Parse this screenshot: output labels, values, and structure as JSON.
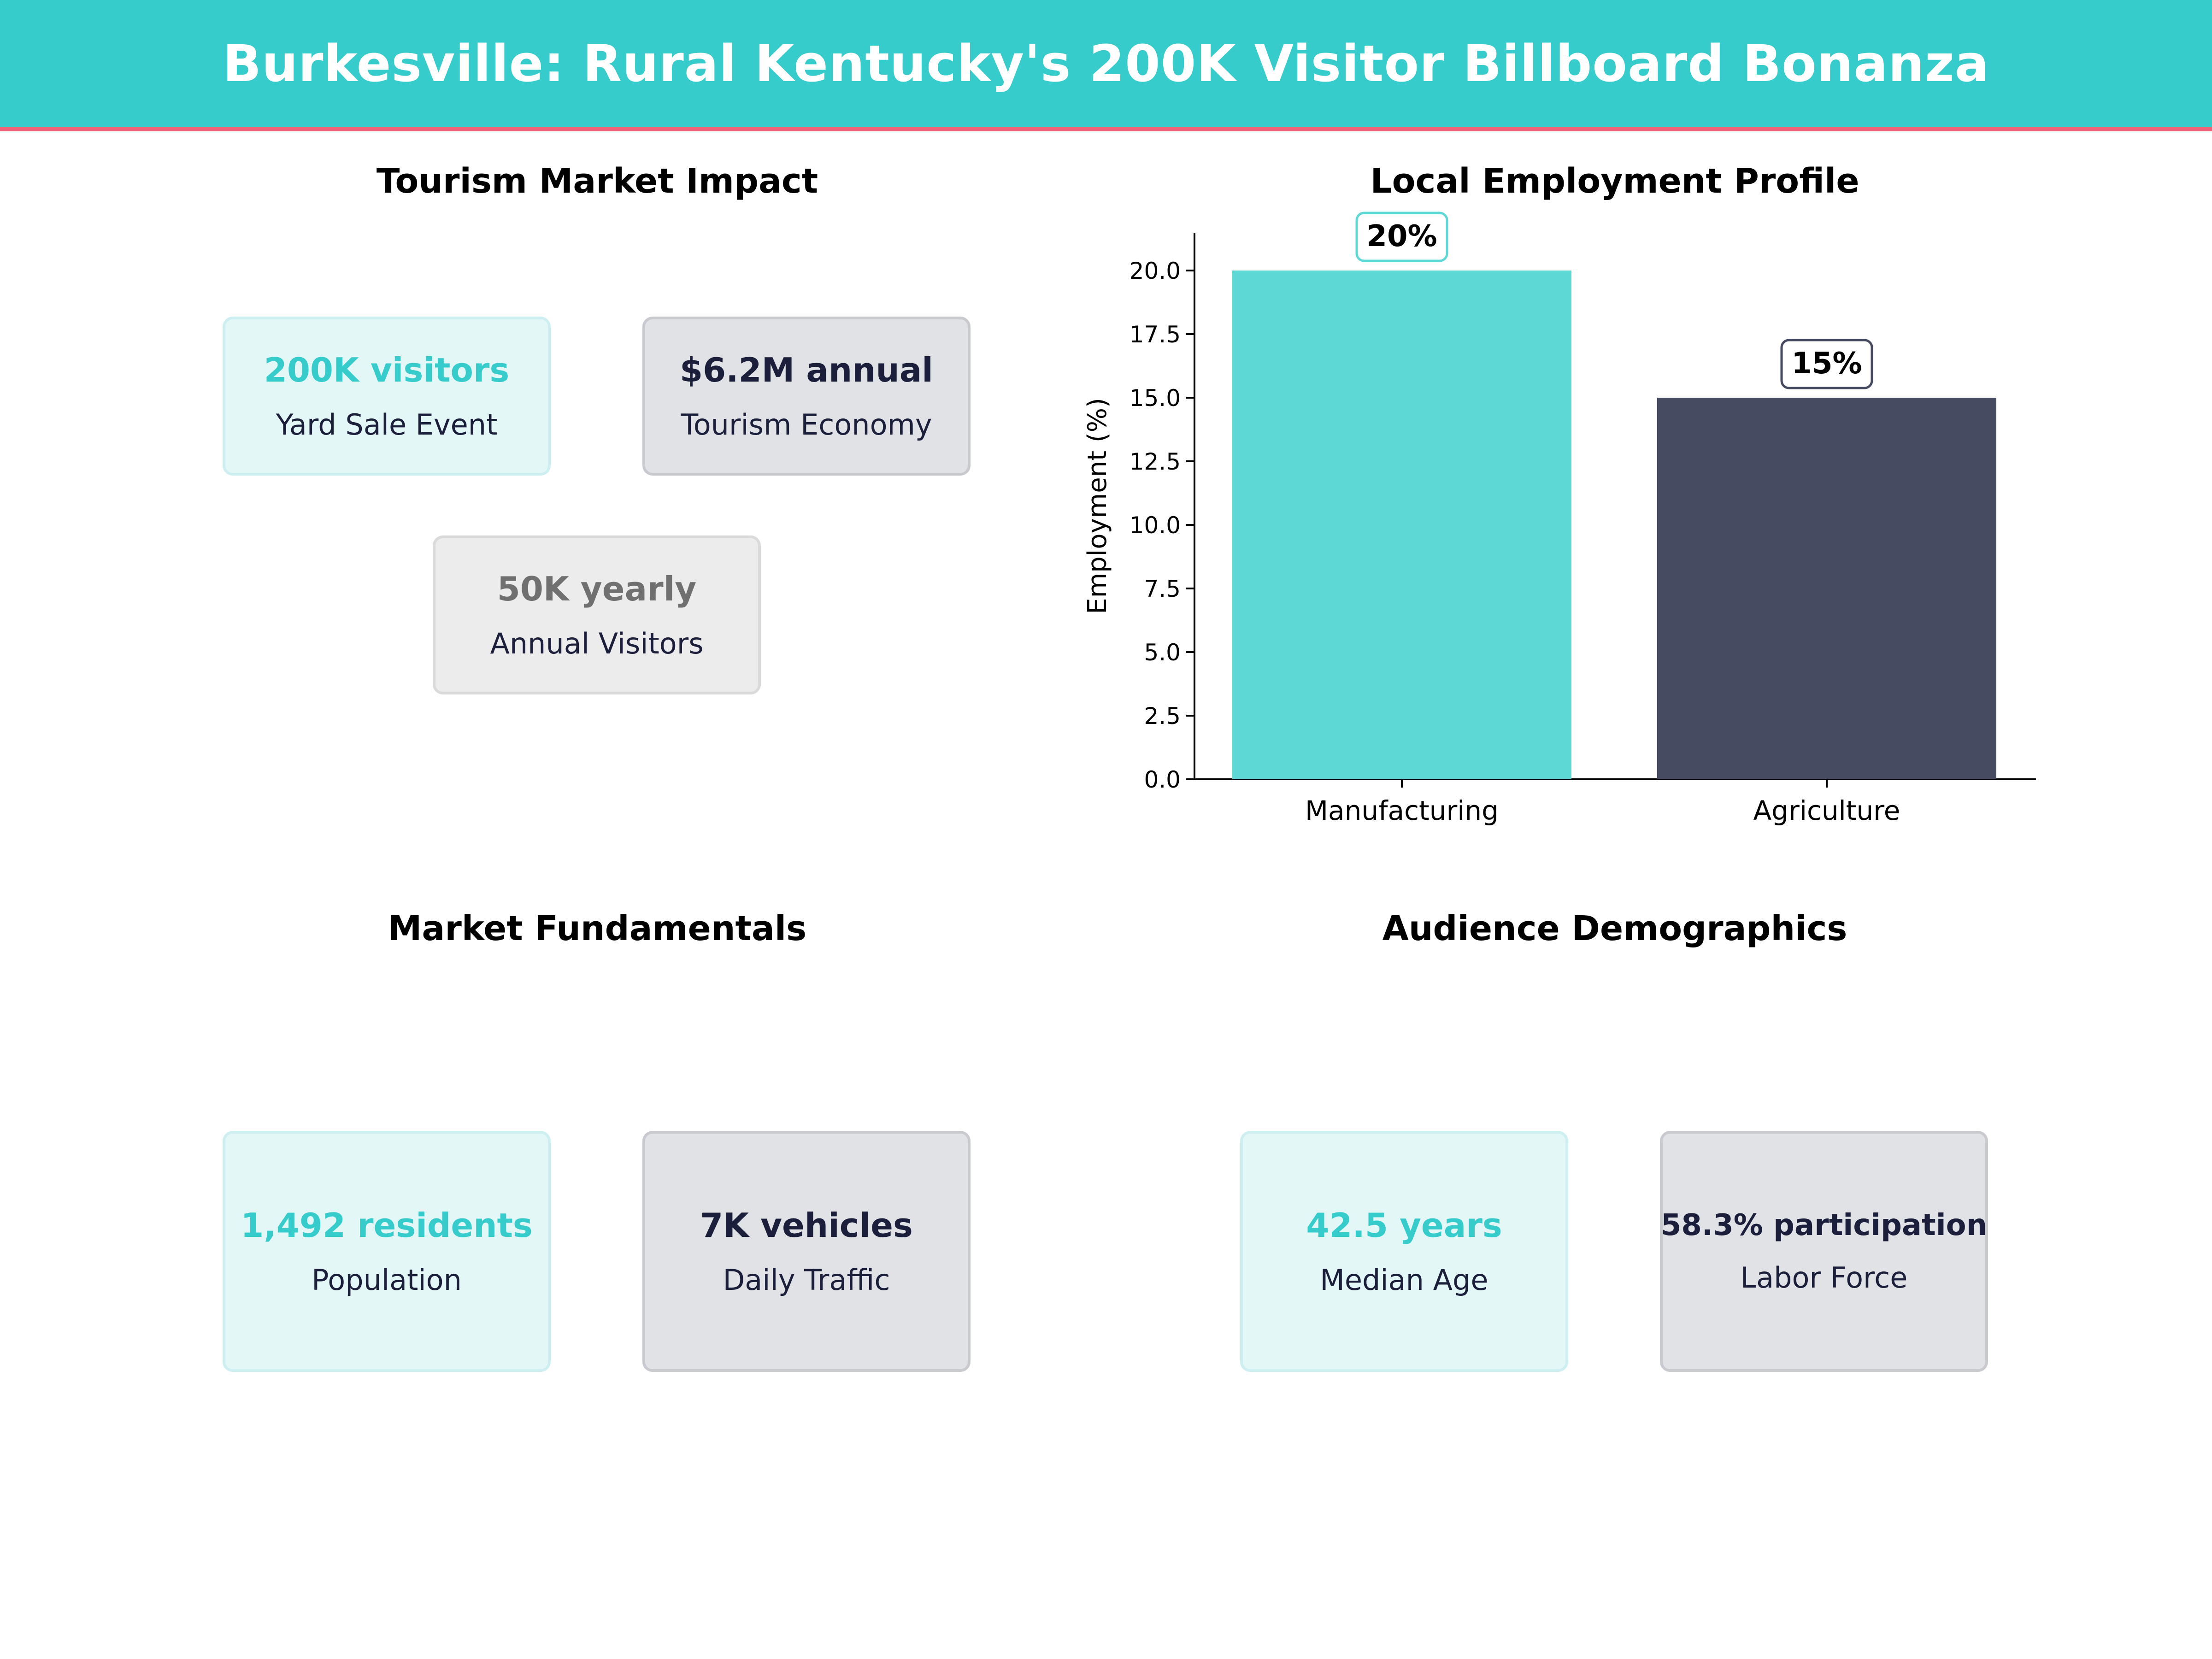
{
  "header": {
    "title": "Burkesville: Rural Kentucky's 200K Visitor Billboard Bonanza"
  },
  "colors": {
    "teal": "#36CCCC",
    "navy": "#1B1F3B",
    "accent_line": "#EF6079",
    "bar1": "#5DD8D4",
    "bar2": "#464B61"
  },
  "sections": {
    "tourism": {
      "title": "Tourism Market Impact",
      "cards": [
        {
          "value": "200K visitors",
          "label": "Yard Sale Event"
        },
        {
          "value": "$6.2M annual",
          "label": "Tourism Economy"
        },
        {
          "value": "50K yearly",
          "label": "Annual Visitors"
        }
      ]
    },
    "employment": {
      "title": "Local Employment Profile"
    },
    "fundamentals": {
      "title": "Market Fundamentals",
      "cards": [
        {
          "value": "1,492 residents",
          "label": "Population"
        },
        {
          "value": "7K vehicles",
          "label": "Daily Traffic"
        }
      ]
    },
    "demographics": {
      "title": "Audience Demographics",
      "cards": [
        {
          "value": "42.5 years",
          "label": "Median Age"
        },
        {
          "value": "58.3% participation",
          "label": "Labor Force"
        }
      ]
    }
  },
  "chart_data": {
    "type": "bar",
    "title": "Local Employment Profile",
    "categories": [
      "Manufacturing",
      "Agriculture"
    ],
    "values": [
      20,
      15
    ],
    "value_labels": [
      "20%",
      "15%"
    ],
    "xlabel": "",
    "ylabel": "Employment (%)",
    "ylim": [
      0,
      21.5
    ],
    "yticks": [
      "0.0",
      "2.5",
      "5.0",
      "7.5",
      "10.0",
      "12.5",
      "15.0",
      "17.5",
      "20.0"
    ],
    "grid": false,
    "legend": null
  }
}
